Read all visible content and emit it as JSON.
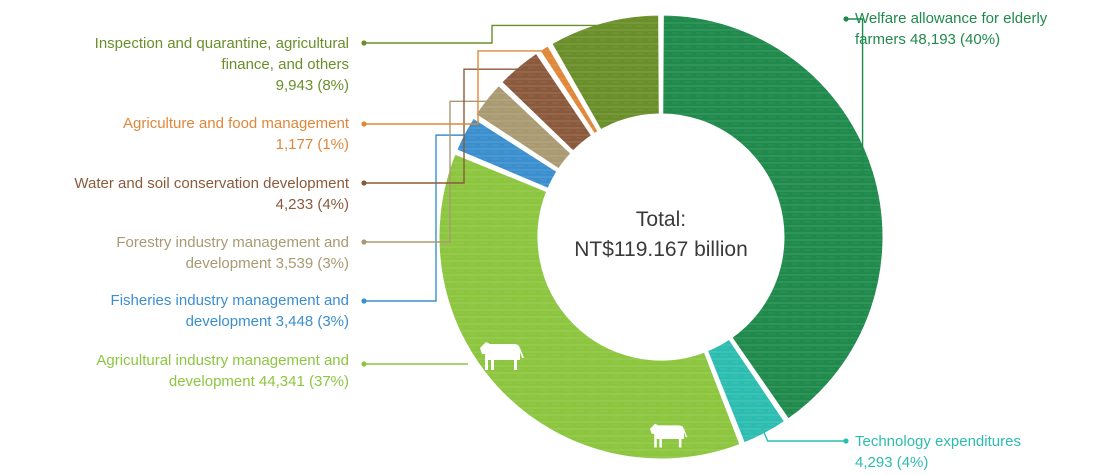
{
  "chart_data": {
    "type": "pie",
    "donut": true,
    "center_text": {
      "line1": "Total:",
      "line2": "NT$119.167 billion"
    },
    "slices": [
      {
        "id": "welfare",
        "line1": "Welfare allowance for elderly",
        "line2": "farmers 48,193 (40%)",
        "value": 48193,
        "percent": 40,
        "color": "#1f8a4c"
      },
      {
        "id": "tech",
        "line1": "Technology expenditures",
        "line2": "4,293 (4%)",
        "value": 4293,
        "percent": 4,
        "color": "#2dbdb0"
      },
      {
        "id": "agri",
        "line1": "Agricultural industry management and",
        "line2": "development 44,341 (37%)",
        "value": 44341,
        "percent": 37,
        "color": "#8cc63f"
      },
      {
        "id": "fish",
        "line1": "Fisheries industry management and",
        "line2": "development 3,448 (3%)",
        "value": 3448,
        "percent": 3,
        "color": "#3b8fcf"
      },
      {
        "id": "forest",
        "line1": "Forestry industry management and",
        "line2": "development 3,539 (3%)",
        "value": 3539,
        "percent": 3,
        "color": "#a99a72"
      },
      {
        "id": "water",
        "line1": "Water and soil conservation development",
        "line2": "4,233 (4%)",
        "value": 4233,
        "percent": 4,
        "color": "#8b5a3c"
      },
      {
        "id": "food",
        "line1": "Agriculture and food management",
        "line2": "1,177 (1%)",
        "value": 1177,
        "percent": 1,
        "color": "#e0873a"
      },
      {
        "id": "inspect",
        "line1": "Inspection and quarantine, agricultural",
        "line2": "finance, and others",
        "line3": "9,943 (8%)",
        "value": 9943,
        "percent": 8,
        "color": "#6a8f2a"
      }
    ]
  }
}
